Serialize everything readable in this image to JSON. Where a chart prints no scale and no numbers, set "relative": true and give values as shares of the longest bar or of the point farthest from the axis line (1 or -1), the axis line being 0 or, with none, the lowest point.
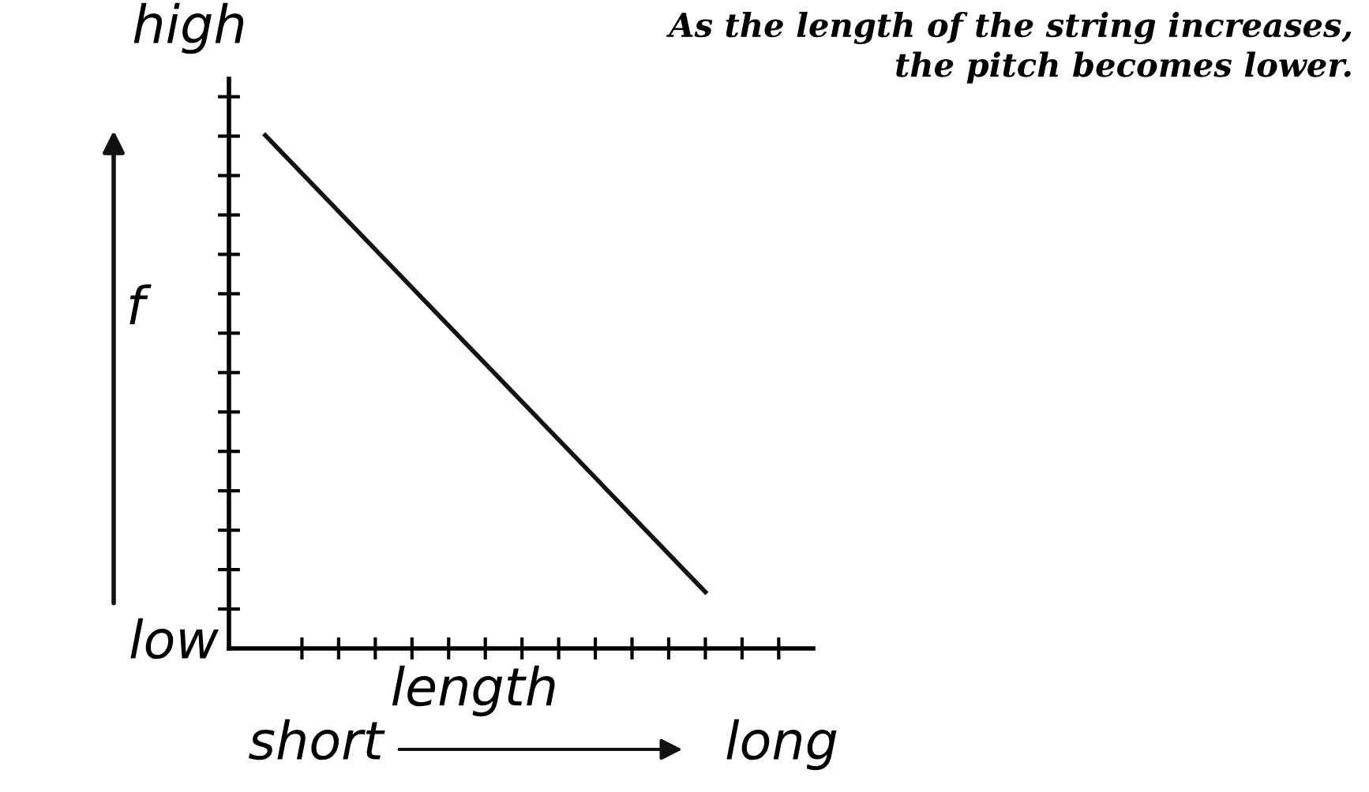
{
  "chart_data": {
    "type": "line",
    "relative": true,
    "categories": [
      null,
      null,
      null
    ],
    "series": [
      {
        "color": "#111111",
        "values": [
          1,
          0.555,
          0.11
        ]
      }
    ],
    "title": "As the length of the string increases,\nthe pitch becomes lower.",
    "ylabel": "f",
    "xlabel": "length",
    "annotations": [
      "high",
      "low",
      "short",
      "long"
    ],
    "tick_labels": false,
    "grid": false,
    "legend": false,
    "marker": "none",
    "line_style": "solid"
  }
}
